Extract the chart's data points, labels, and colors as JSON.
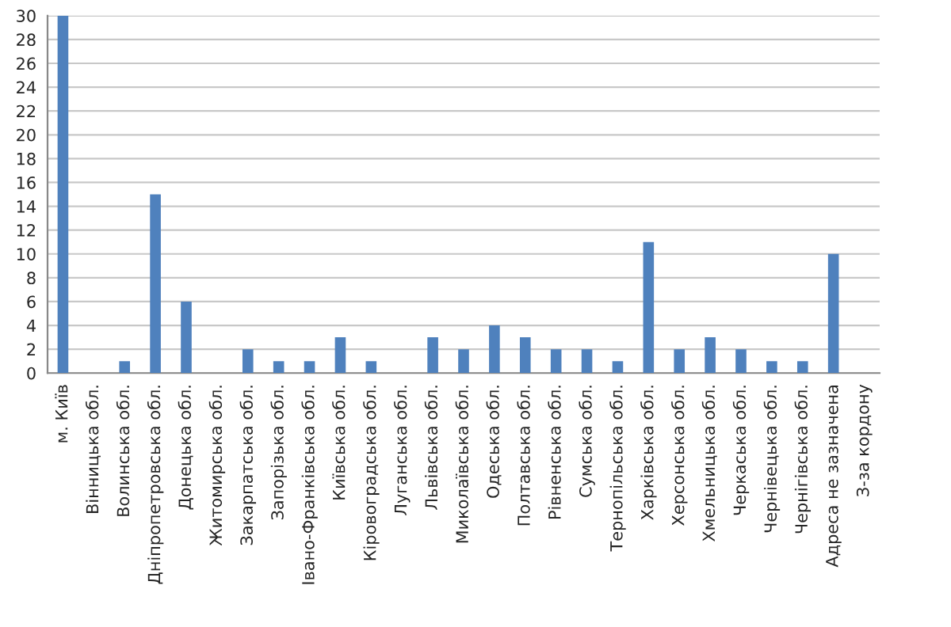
{
  "chart_data": {
    "type": "bar",
    "categories": [
      "м. Київ",
      "Вінницька обл.",
      "Волинська обл.",
      "Дніпропетровська обл.",
      "Донецька обл.",
      "Житомирська обл.",
      "Закарпатська обл.",
      "Запорізька обл.",
      "Івано-Франківська обл.",
      "Київська обл.",
      "Кіровоградська обл.",
      "Луганська обл.",
      "Львівська обл.",
      "Миколаївська обл.",
      "Одеська обл.",
      "Полтавська обл.",
      "Рівненська обл.",
      "Сумська обл.",
      "Тернопільська обл.",
      "Харківська обл.",
      "Херсонська обл.",
      "Хмельницька обл.",
      "Черкаська обл.",
      "Чернівецька обл.",
      "Чернігівська обл.",
      "Адреса не зазначена",
      "З-за кордону"
    ],
    "values": [
      30,
      0,
      1,
      15,
      6,
      0,
      2,
      1,
      1,
      3,
      1,
      0,
      3,
      2,
      4,
      3,
      2,
      2,
      1,
      11,
      2,
      3,
      2,
      1,
      1,
      10,
      0
    ],
    "color": "#4f81bd",
    "ylim": [
      0,
      30
    ],
    "yticks": [
      0,
      2,
      4,
      6,
      8,
      10,
      12,
      14,
      16,
      18,
      20,
      22,
      24,
      26,
      28,
      30
    ],
    "grid": "y"
  }
}
